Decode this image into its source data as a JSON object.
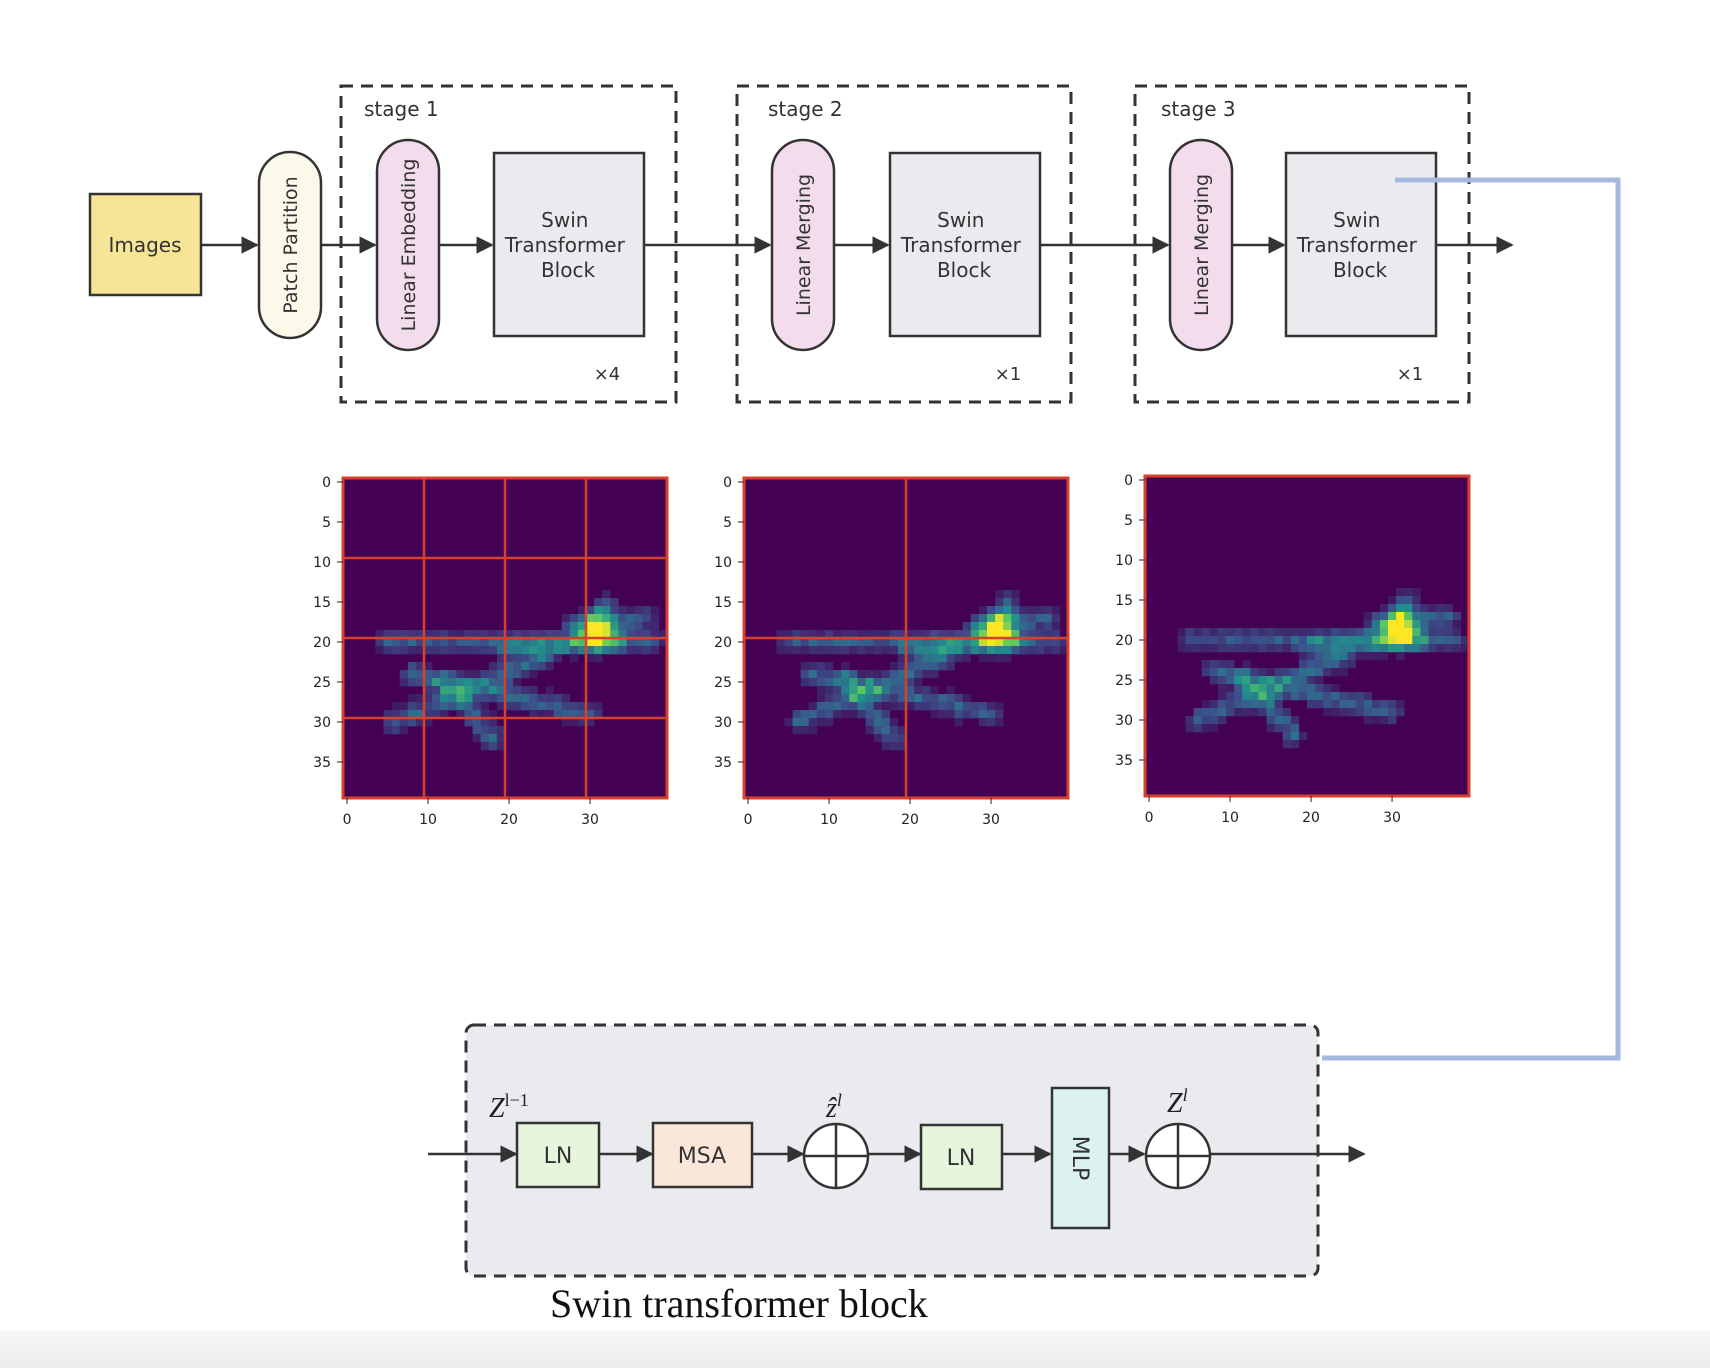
{
  "pipeline": {
    "input_label": "Images",
    "patch_partition_label": "Patch Partition",
    "stages": [
      {
        "title": "stage 1",
        "entry_label": "Linear Embedding",
        "block_lines": [
          "Swin",
          "Transformer",
          "Block"
        ],
        "repeat": "×4"
      },
      {
        "title": "stage 2",
        "entry_label": "Linear Merging",
        "block_lines": [
          "Swin",
          "Transformer",
          "Block"
        ],
        "repeat": "×1"
      },
      {
        "title": "stage 3",
        "entry_label": "Linear Merging",
        "block_lines": [
          "Swin",
          "Transformer",
          "Block"
        ],
        "repeat": "×1"
      }
    ]
  },
  "attention_maps": {
    "y_ticks": [
      "0",
      "5",
      "10",
      "15",
      "20",
      "25",
      "30",
      "35"
    ],
    "x_ticks": [
      "0",
      "10",
      "20",
      "30"
    ],
    "windows_per_side": [
      4,
      2,
      1
    ],
    "colormap": [
      "#440154",
      "#3b528b",
      "#21918c",
      "#5ec962",
      "#fde725"
    ],
    "window_line_color": "#d9402b"
  },
  "swin_block": {
    "input_symbol": "Z",
    "input_superscript": "l−1",
    "ln1_label": "LN",
    "msa_label": "MSA",
    "mid_symbol": "ẑ",
    "mid_superscript": "l",
    "ln2_label": "LN",
    "mlp_label": "MLP",
    "output_symbol": "Z",
    "output_superscript": "l",
    "caption": "Swin transformer block"
  },
  "colors": {
    "images_fill": "#f7e597",
    "patch_fill": "#fbf9ea",
    "embed_fill": "#f3dded",
    "block_fill": "#e9ebef",
    "connector": "#a6b8e0",
    "ln_fill": "#e6f5dc",
    "msa_fill": "#fbe7da",
    "mlp_fill": "#dcf2f1",
    "detail_bg": "#e9ebee"
  }
}
